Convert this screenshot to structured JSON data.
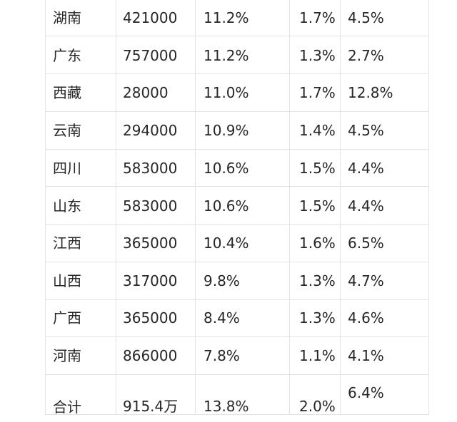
{
  "rows": [
    {
      "region": "湖南",
      "value": "421000",
      "pct1": "11.2%",
      "pct2": "1.7%",
      "pct3": "4.5%"
    },
    {
      "region": "广东",
      "value": "757000",
      "pct1": "11.2%",
      "pct2": "1.3%",
      "pct3": "2.7%"
    },
    {
      "region": "西藏",
      "value": "28000",
      "pct1": "11.0%",
      "pct2": "1.7%",
      "pct3": "12.8%"
    },
    {
      "region": "云南",
      "value": "294000",
      "pct1": "10.9%",
      "pct2": "1.4%",
      "pct3": "4.5%"
    },
    {
      "region": "四川",
      "value": "583000",
      "pct1": "10.6%",
      "pct2": "1.5%",
      "pct3": "4.4%"
    },
    {
      "region": "山东",
      "value": "583000",
      "pct1": "10.6%",
      "pct2": "1.5%",
      "pct3": "4.4%"
    },
    {
      "region": "江西",
      "value": "365000",
      "pct1": "10.4%",
      "pct2": "1.6%",
      "pct3": "6.5%"
    },
    {
      "region": "山西",
      "value": "317000",
      "pct1": "9.8%",
      "pct2": "1.3%",
      "pct3": "4.7%"
    },
    {
      "region": "广西",
      "value": "365000",
      "pct1": "8.4%",
      "pct2": "1.3%",
      "pct3": "4.6%"
    },
    {
      "region": "河南",
      "value": "866000",
      "pct1": "7.8%",
      "pct2": "1.1%",
      "pct3": "4.1%"
    }
  ],
  "total": {
    "region": "合计",
    "value": "915.4万",
    "pct1": "13.8%",
    "pct2": "2.0%",
    "pct3": "6.4%"
  }
}
